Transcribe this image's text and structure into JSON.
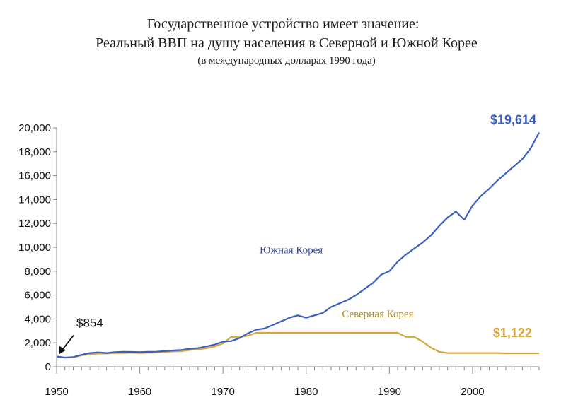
{
  "chart_data": {
    "type": "line",
    "title": "Государственное устройство имеет значение:",
    "subtitle": "Реальный ВВП на душу населения в Северной и Южной Корее",
    "note": "(в международных долларах 1990 года)",
    "xlabel": "",
    "ylabel": "",
    "xlim": [
      1950,
      2008
    ],
    "ylim": [
      0,
      20000
    ],
    "x_ticks": [
      1950,
      1960,
      1970,
      1980,
      1990,
      2000
    ],
    "x_tick_labels": [
      "1950",
      "1960",
      "1970",
      "1980",
      "1990",
      "2000"
    ],
    "y_ticks": [
      0,
      2000,
      4000,
      6000,
      8000,
      10000,
      12000,
      14000,
      16000,
      18000,
      20000
    ],
    "y_tick_labels": [
      "0",
      "2,000",
      "4,000",
      "6,000",
      "8,000",
      "10,000",
      "12,000",
      "14,000",
      "16,000",
      "18,000",
      "20,000"
    ],
    "grid": false,
    "legend": "none",
    "series": [
      {
        "name": "Южная Корея",
        "color": "#3a5fbf",
        "label_color": "#33479a",
        "x": [
          1950,
          1951,
          1952,
          1953,
          1954,
          1955,
          1956,
          1957,
          1958,
          1959,
          1960,
          1961,
          1962,
          1963,
          1964,
          1965,
          1966,
          1967,
          1968,
          1969,
          1970,
          1971,
          1972,
          1973,
          1974,
          1975,
          1976,
          1977,
          1978,
          1979,
          1980,
          1981,
          1982,
          1983,
          1984,
          1985,
          1986,
          1987,
          1988,
          1989,
          1990,
          1991,
          1992,
          1993,
          1994,
          1995,
          1996,
          1997,
          1998,
          1999,
          2000,
          2001,
          2002,
          2003,
          2004,
          2005,
          2006,
          2007,
          2008
        ],
        "values": [
          854,
          770,
          810,
          1000,
          1150,
          1200,
          1150,
          1220,
          1250,
          1240,
          1220,
          1250,
          1260,
          1310,
          1360,
          1400,
          1500,
          1560,
          1700,
          1850,
          2100,
          2150,
          2400,
          2800,
          3100,
          3200,
          3500,
          3800,
          4100,
          4300,
          4100,
          4300,
          4500,
          5000,
          5300,
          5600,
          6000,
          6500,
          7000,
          7700,
          8000,
          8800,
          9400,
          9900,
          10400,
          11000,
          11800,
          12500,
          13000,
          12300,
          13500,
          14300,
          14900,
          15600,
          16200,
          16800,
          17400,
          18300,
          19614
        ],
        "end_label": "$19,614"
      },
      {
        "name": "Северная Корея",
        "color": "#d9a63a",
        "label_color": "#b38a2e",
        "x": [
          1950,
          1951,
          1952,
          1953,
          1954,
          1955,
          1956,
          1957,
          1958,
          1959,
          1960,
          1961,
          1962,
          1963,
          1964,
          1965,
          1966,
          1967,
          1968,
          1969,
          1970,
          1971,
          1972,
          1973,
          1974,
          1975,
          1976,
          1977,
          1978,
          1979,
          1980,
          1981,
          1982,
          1983,
          1984,
          1985,
          1986,
          1987,
          1988,
          1989,
          1990,
          1991,
          1992,
          1993,
          1994,
          1995,
          1996,
          1997,
          1998,
          1999,
          2000,
          2001,
          2002,
          2003,
          2004,
          2005,
          2006,
          2007,
          2008
        ],
        "values": [
          854,
          750,
          800,
          950,
          1050,
          1100,
          1100,
          1150,
          1150,
          1180,
          1150,
          1180,
          1180,
          1230,
          1280,
          1300,
          1400,
          1450,
          1550,
          1700,
          1950,
          2500,
          2500,
          2600,
          2840,
          2840,
          2840,
          2840,
          2840,
          2840,
          2840,
          2840,
          2840,
          2840,
          2840,
          2840,
          2840,
          2840,
          2840,
          2840,
          2840,
          2840,
          2500,
          2500,
          2100,
          1600,
          1250,
          1150,
          1150,
          1150,
          1150,
          1150,
          1150,
          1150,
          1122,
          1122,
          1122,
          1122,
          1122
        ],
        "end_label": "$1,122"
      }
    ],
    "annotations": [
      {
        "text": "$854",
        "x": 1950,
        "y": 854
      }
    ]
  }
}
